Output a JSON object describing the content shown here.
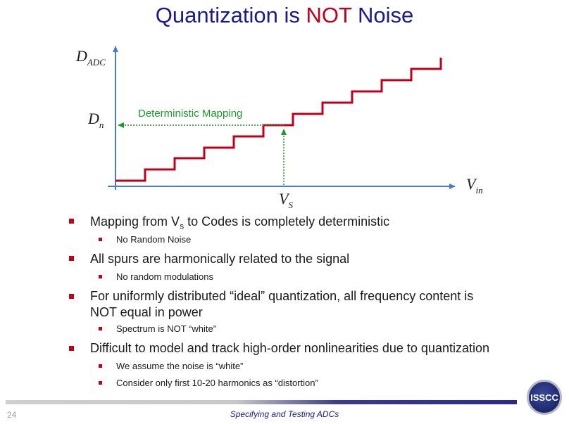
{
  "title": {
    "part1": "Quantization is ",
    "highlight": "NOT",
    "part2": " Noise"
  },
  "diagram": {
    "y_axis_label": "D",
    "y_axis_sub": "ADC",
    "x_axis_label": "V",
    "x_axis_sub": "in",
    "dn_label": "D",
    "dn_sub": "n",
    "vs_label": "V",
    "vs_sub": "S",
    "mapping_label": "Deterministic Mapping",
    "colors": {
      "staircase": "#c0001a",
      "axes": "#4a7ac8",
      "mapping": "#1a9a2a"
    }
  },
  "bullets": [
    {
      "text_a": "Mapping from V",
      "text_sub": "s",
      "text_b": " to Codes is completely deterministic",
      "subs": [
        "No Random Noise"
      ]
    },
    {
      "text": "All spurs are harmonically related to the signal",
      "subs": [
        "No random modulations"
      ]
    },
    {
      "line1": "For uniformly distributed “ideal” quantization, all frequency content is",
      "line2": "NOT equal in power",
      "subs": [
        "Spectrum is NOT “white”"
      ]
    },
    {
      "text": "Difficult to model and track high-order nonlinearities due to quantization",
      "subs": [
        "We assume the noise is “white”",
        "Consider only first 10-20 harmonics as “distortion”"
      ]
    }
  ],
  "footer": {
    "page": "24",
    "text": "Specifying and Testing ADCs",
    "logo": "ISSCC"
  }
}
